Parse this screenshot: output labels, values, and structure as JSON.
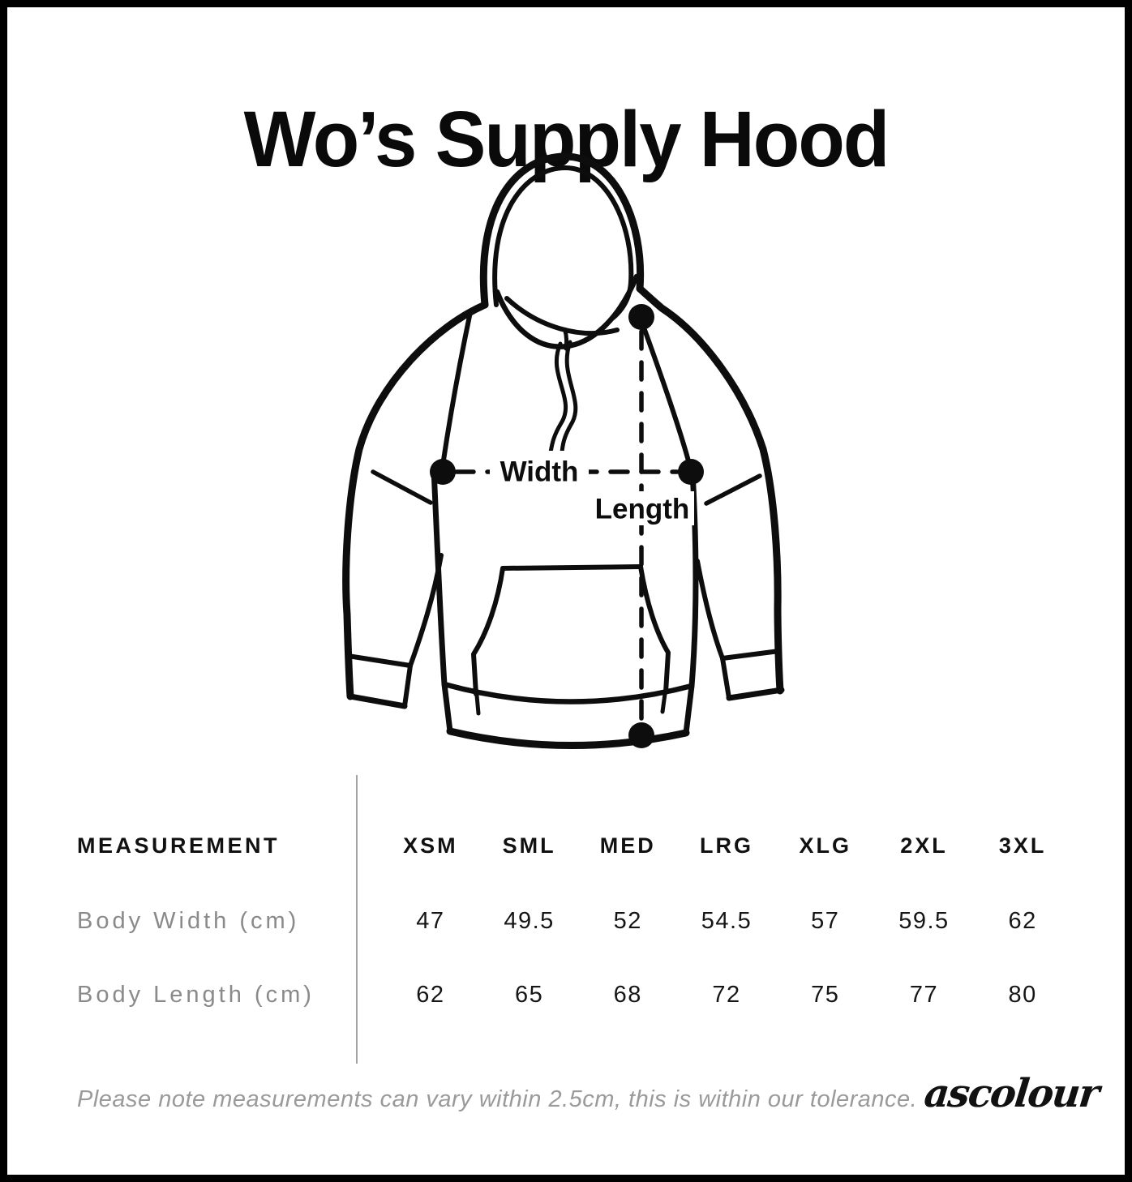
{
  "title": "Wo’s Supply Hood",
  "diagram": {
    "width_label": "Width",
    "length_label": "Length"
  },
  "table": {
    "measurement_header": "MEASUREMENT",
    "size_headers": [
      "XSM",
      "SML",
      "MED",
      "LRG",
      "XLG",
      "2XL",
      "3XL"
    ],
    "rows": [
      {
        "label": "Body Width (cm)",
        "values": [
          "47",
          "49.5",
          "52",
          "54.5",
          "57",
          "59.5",
          "62"
        ]
      },
      {
        "label": "Body Length (cm)",
        "values": [
          "62",
          "65",
          "68",
          "72",
          "75",
          "77",
          "80"
        ]
      }
    ]
  },
  "footer": {
    "note": "Please note measurements can vary within 2.5cm, this is within our tolerance.",
    "brand": "ascolour"
  },
  "colors": {
    "ink": "#0d0d0d",
    "muted_text": "#8a8a8a",
    "divider": "#a3a3a3",
    "background": "#ffffff",
    "border": "#000000"
  },
  "chart_data": {
    "type": "table",
    "title": "Wo’s Supply Hood size chart",
    "columns": [
      "XSM",
      "SML",
      "MED",
      "LRG",
      "XLG",
      "2XL",
      "3XL"
    ],
    "rows": [
      {
        "label": "Body Width (cm)",
        "values": [
          47,
          49.5,
          52,
          54.5,
          57,
          59.5,
          62
        ]
      },
      {
        "label": "Body Length (cm)",
        "values": [
          62,
          65,
          68,
          72,
          75,
          77,
          80
        ]
      }
    ]
  }
}
